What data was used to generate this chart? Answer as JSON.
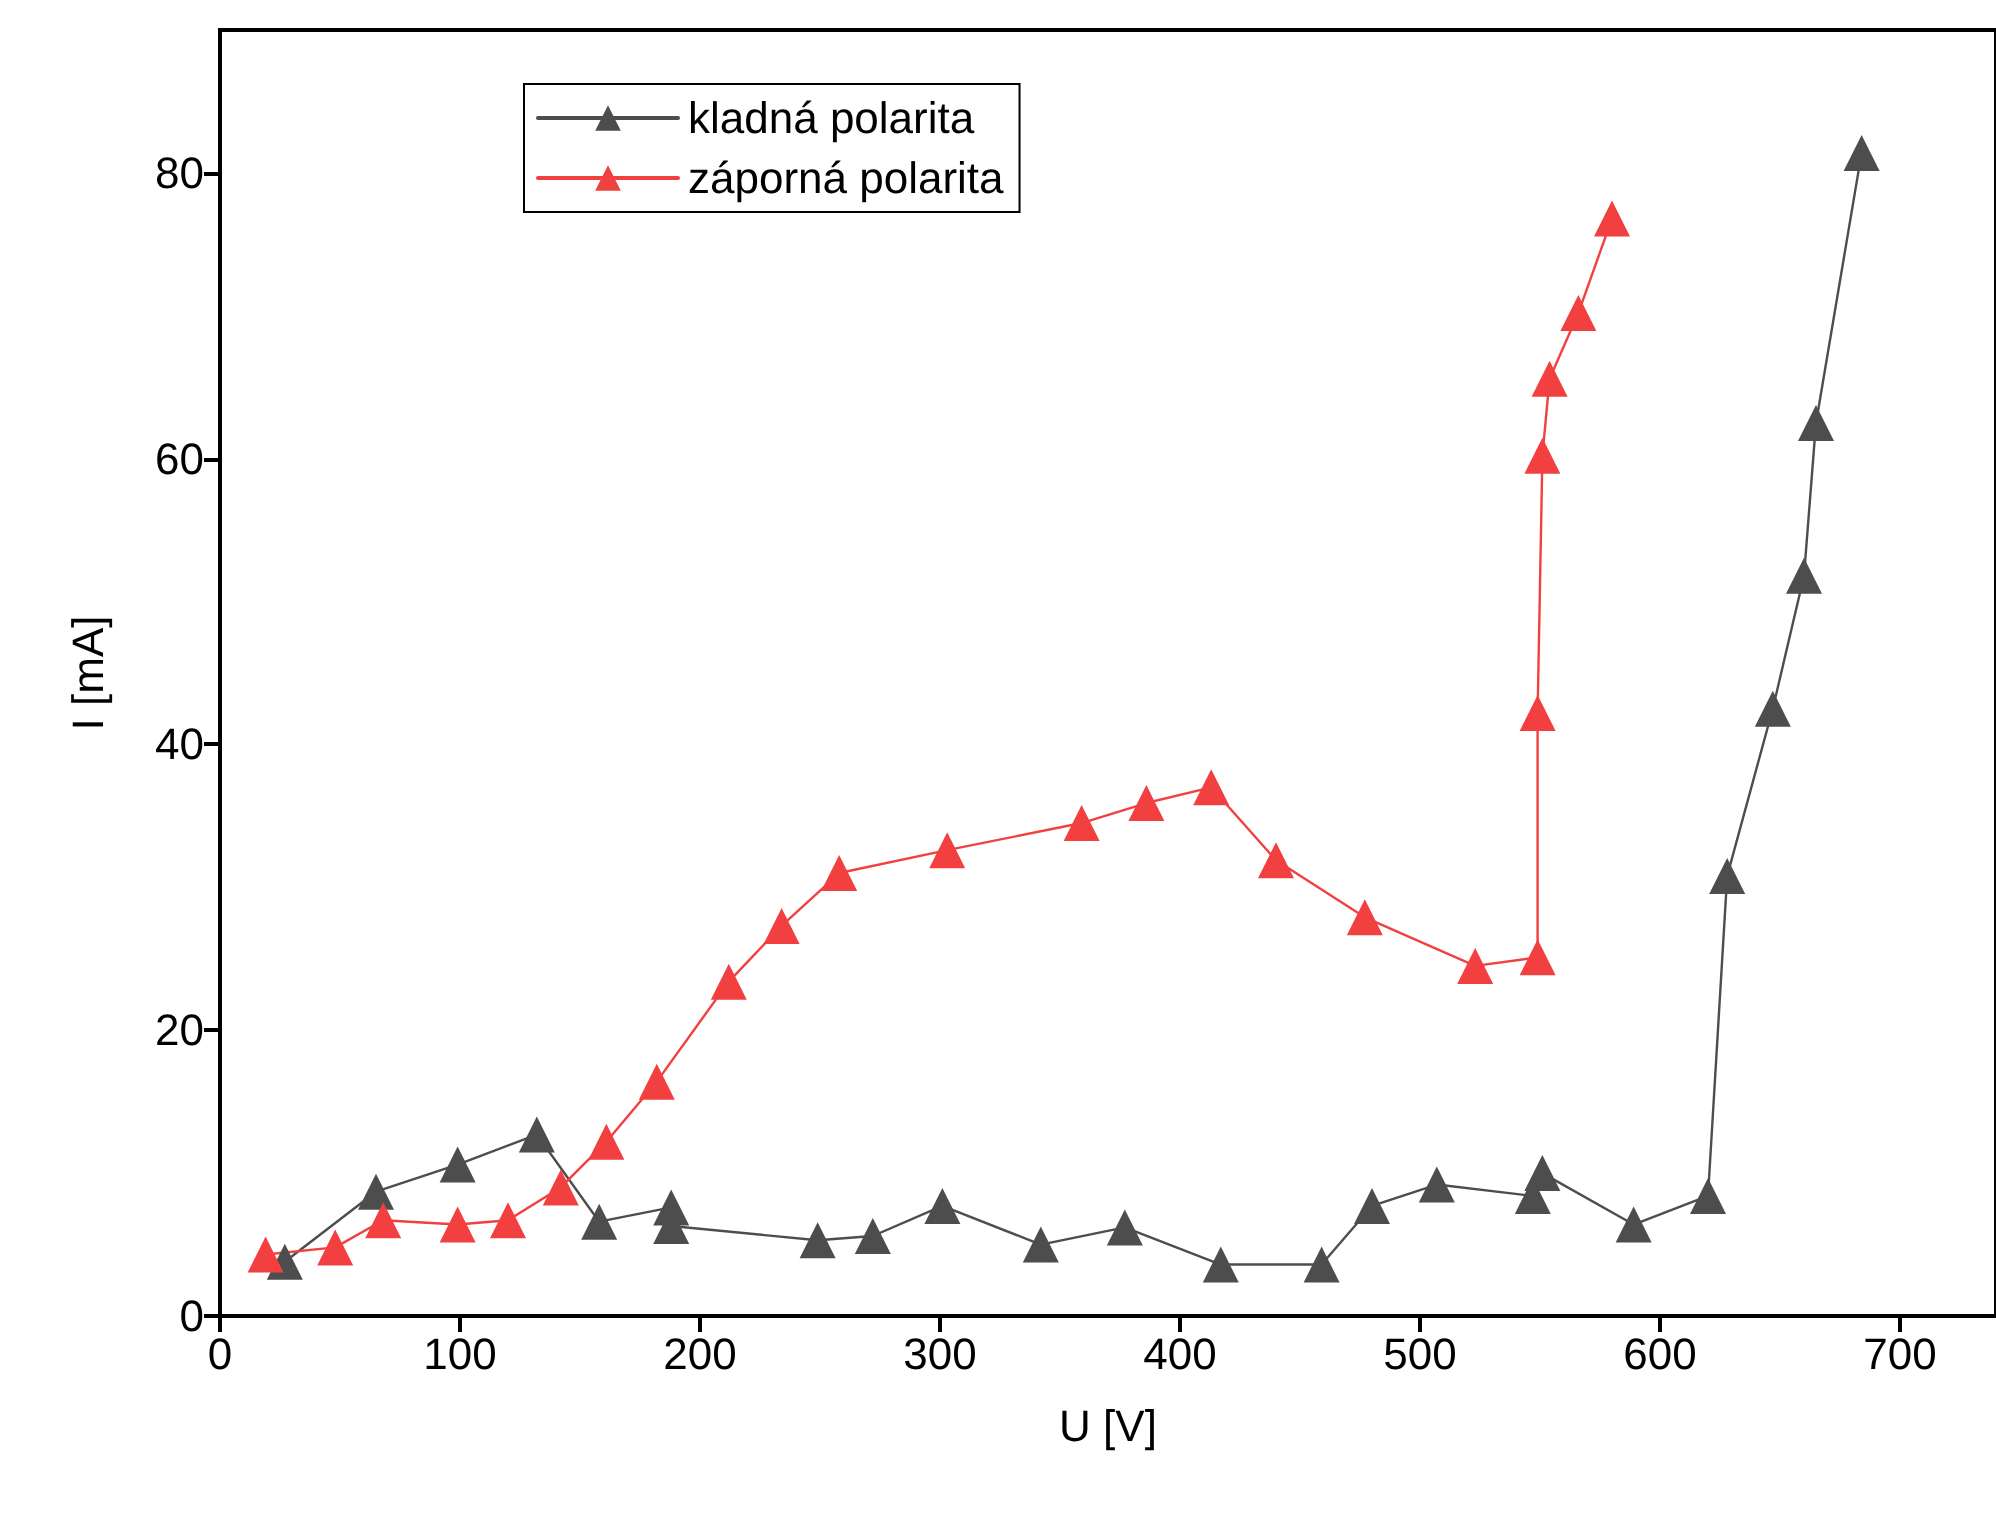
{
  "chart_data": {
    "type": "line",
    "xlabel": "U [V]",
    "ylabel": "I [mA]",
    "xlim": [
      0,
      740
    ],
    "ylim": [
      0,
      90
    ],
    "xticks": [
      0,
      100,
      200,
      300,
      400,
      500,
      600,
      700
    ],
    "yticks": [
      0,
      20,
      40,
      60,
      80
    ],
    "grid": false,
    "legend": "top left",
    "marker": "triangle",
    "line_style": "solid",
    "series": [
      {
        "name": "kladná polarita",
        "color": "#4d4d4d",
        "x": [
          27,
          65,
          99,
          132,
          158,
          188,
          188,
          249,
          272,
          301,
          342,
          377,
          417,
          459,
          480,
          507,
          547,
          551,
          589,
          620,
          628,
          647,
          660,
          665,
          684
        ],
        "values": [
          3.8,
          8.7,
          10.6,
          12.7,
          6.6,
          7.6,
          6.3,
          5.3,
          5.6,
          7.7,
          5.0,
          6.2,
          3.6,
          3.6,
          7.7,
          9.2,
          8.4,
          10.0,
          6.4,
          8.4,
          30.8,
          42.5,
          51.8,
          62.5,
          81.4
        ]
      },
      {
        "name": "záporná polarita",
        "color": "#f24040",
        "x": [
          19,
          48,
          68,
          99,
          120,
          142,
          161,
          182,
          212,
          234,
          258,
          303,
          359,
          386,
          413,
          440,
          477,
          523,
          549,
          549,
          551,
          554,
          566,
          580
        ],
        "values": [
          4.3,
          4.8,
          6.7,
          6.4,
          6.7,
          9.0,
          12.2,
          16.4,
          23.4,
          27.3,
          31.0,
          32.6,
          34.5,
          35.9,
          37.0,
          31.9,
          27.9,
          24.5,
          25.1,
          42.2,
          60.2,
          65.6,
          70.2,
          76.8
        ]
      }
    ]
  }
}
